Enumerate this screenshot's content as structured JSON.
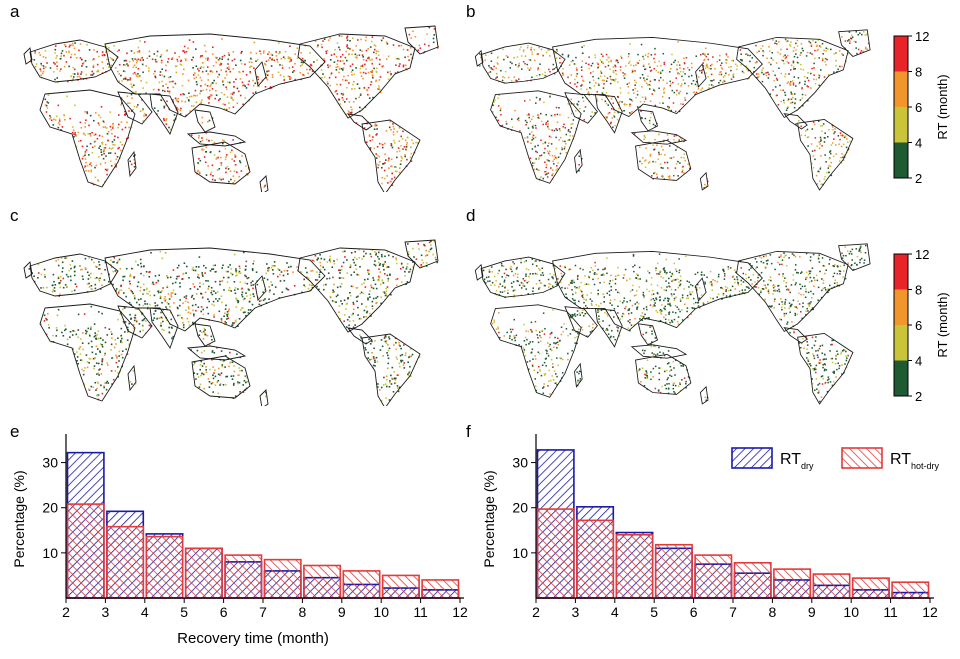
{
  "panels": {
    "a": "a",
    "b": "b",
    "c": "c",
    "d": "d",
    "e": "e",
    "f": "f"
  },
  "colors": {
    "bin_2_4": "#1e5a32",
    "bin_4_6": "#c9c43a",
    "bin_6_8": "#f0962d",
    "bin_8_12": "#e8232a",
    "dry": "#1a1aa8",
    "hot_dry": "#e23b3b",
    "coast": "#1a1a1a"
  },
  "colorbar": {
    "label": "RT (month)",
    "ticks": [
      "12",
      "8",
      "6",
      "4",
      "2"
    ]
  },
  "maps": [
    {
      "panel": "a",
      "composition": [
        0.18,
        0.22,
        0.3,
        0.3
      ]
    },
    {
      "panel": "b",
      "composition": [
        0.3,
        0.24,
        0.26,
        0.2
      ]
    },
    {
      "panel": "c",
      "composition": [
        0.52,
        0.26,
        0.14,
        0.08
      ]
    },
    {
      "panel": "d",
      "composition": [
        0.58,
        0.24,
        0.12,
        0.06
      ]
    }
  ],
  "chart_data": [
    {
      "panel": "e",
      "type": "bar",
      "xlabel": "Recovery time (month)",
      "ylabel": "Percentage (%)",
      "xlim": [
        2,
        12
      ],
      "ylim": [
        0,
        35
      ],
      "xticks": [
        "2",
        "3",
        "4",
        "5",
        "6",
        "7",
        "8",
        "9",
        "10",
        "11",
        "12"
      ],
      "yticks": [
        "10",
        "20",
        "30"
      ],
      "bin_edges": [
        2,
        3,
        4,
        5,
        6,
        7,
        8,
        9,
        10,
        11,
        12
      ],
      "series": [
        {
          "key": "dry",
          "values": [
            32.2,
            19.2,
            14.2,
            11.0,
            8.0,
            6.0,
            4.5,
            3.0,
            2.2,
            1.8
          ]
        },
        {
          "key": "hot_dry",
          "values": [
            20.8,
            15.8,
            13.6,
            11.0,
            9.5,
            8.5,
            7.2,
            6.0,
            5.0,
            4.0
          ]
        }
      ]
    },
    {
      "panel": "f",
      "type": "bar",
      "xlabel": "",
      "ylabel": "Percentage (%)",
      "xlim": [
        2,
        12
      ],
      "ylim": [
        0,
        35
      ],
      "xticks": [
        "2",
        "3",
        "4",
        "5",
        "6",
        "7",
        "8",
        "9",
        "10",
        "11",
        "12"
      ],
      "yticks": [
        "10",
        "20",
        "30"
      ],
      "bin_edges": [
        2,
        3,
        4,
        5,
        6,
        7,
        8,
        9,
        10,
        11,
        12
      ],
      "legend": {
        "position": "top-right",
        "dry": {
          "main": "RT",
          "sub": "dry"
        },
        "hot_dry": {
          "main": "RT",
          "sub": "hot-dry"
        }
      },
      "series": [
        {
          "key": "dry",
          "values": [
            32.8,
            20.2,
            14.5,
            11.0,
            7.5,
            5.5,
            4.0,
            2.8,
            1.8,
            1.2
          ]
        },
        {
          "key": "hot_dry",
          "values": [
            19.7,
            17.2,
            14.0,
            11.8,
            9.5,
            7.8,
            6.4,
            5.3,
            4.4,
            3.5
          ]
        }
      ]
    }
  ]
}
